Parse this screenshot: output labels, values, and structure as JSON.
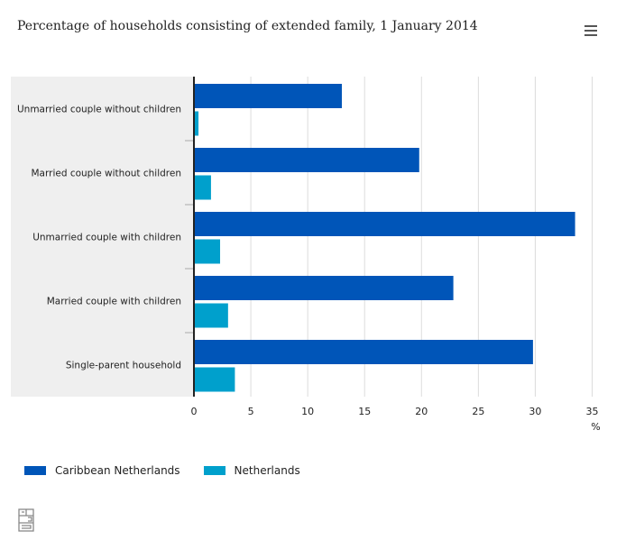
{
  "title": "Percentage of households consisting of extended family, 1 January 2014",
  "menu_icon": "hamburger-menu-icon",
  "logo_text": "cbs",
  "chart_data": {
    "type": "bar",
    "orientation": "horizontal",
    "title": "Percentage of households consisting of extended family, 1 January 2014",
    "categories": [
      "Unmarried couple without children",
      "Married couple without children",
      "Unmarried couple with children",
      "Married couple with children",
      "Single-parent household"
    ],
    "series": [
      {
        "name": "Caribbean Netherlands",
        "color": "#0055b8",
        "values": [
          13.0,
          19.8,
          33.5,
          22.8,
          29.8
        ]
      },
      {
        "name": "Netherlands",
        "color": "#00a0cc",
        "values": [
          0.4,
          1.5,
          2.3,
          3.0,
          3.6
        ]
      }
    ],
    "xlabel": "%",
    "xlim": [
      0,
      35
    ],
    "xticks": [
      "0",
      "5",
      "10",
      "15",
      "20",
      "25",
      "30",
      "35"
    ],
    "grid": true,
    "legend": "bottom-left"
  }
}
